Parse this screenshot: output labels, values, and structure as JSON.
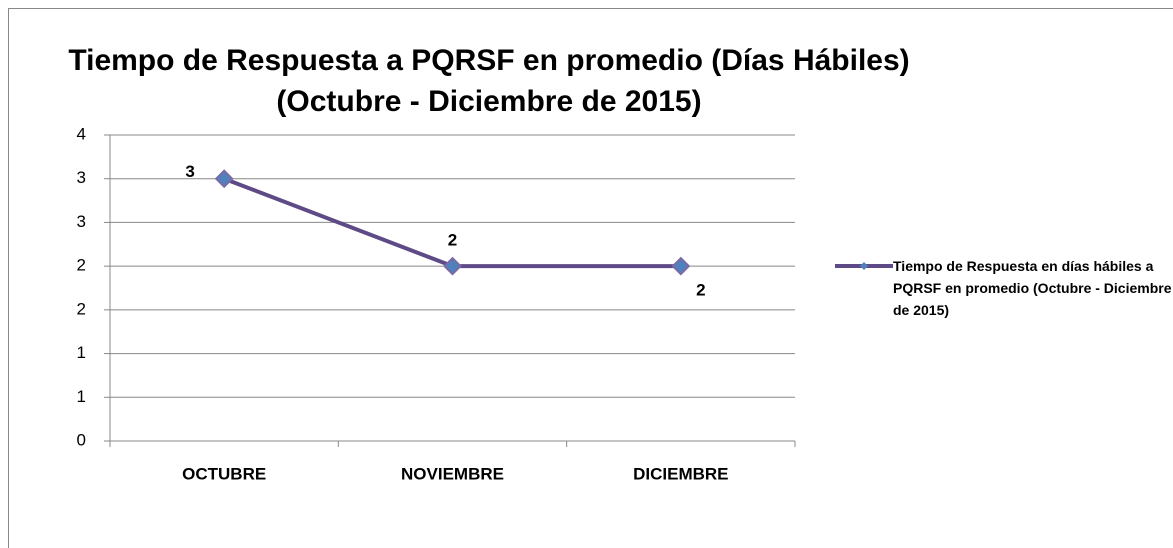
{
  "chart_data": {
    "type": "line",
    "title": "Tiempo de Respuesta a PQRSF en promedio (Días Hábiles)",
    "subtitle": "(Octubre - Diciembre de 2015)",
    "categories": [
      "OCTUBRE",
      "NOVIEMBRE",
      "DICIEMBRE"
    ],
    "series": [
      {
        "name": "Tiempo de Respuesta  en días hábiles  a PQRSF en promedio (Octubre - Diciembre de 2015)",
        "color": "#5e4a86",
        "marker_color": "#4f81bd",
        "values": [
          3,
          2,
          2
        ]
      }
    ],
    "ylim": [
      0,
      3.5
    ],
    "yticks": [
      0,
      {
        "value": 0.5,
        "label": "1"
      },
      1,
      {
        "value": 1.5,
        "label": "2"
      },
      2,
      {
        "value": 2.5,
        "label": "3"
      },
      3,
      {
        "value": 3.5,
        "label": "4"
      }
    ],
    "grid": true,
    "legend": "right"
  }
}
